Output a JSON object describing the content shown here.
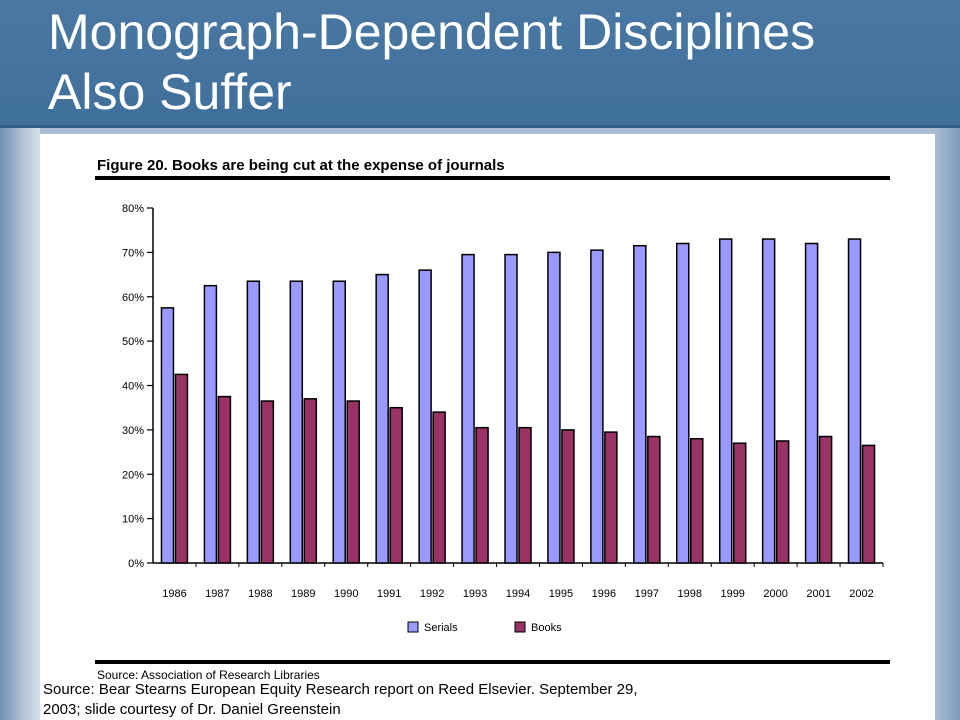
{
  "slide": {
    "title_line1": "Monograph-Dependent Disciplines",
    "title_line2": "Also Suffer",
    "source_line1": "Source: Bear Stearns European Equity Research report on Reed Elsevier. September 29,",
    "source_line2": "2003; slide courtesy of Dr. Daniel Greenstein"
  },
  "colors": {
    "header": "#4a78a3",
    "serials": "#9999ff",
    "books": "#993366"
  },
  "chart_data": {
    "type": "bar",
    "title": "Figure 20. Books are being cut at the expense of journals",
    "source_note": "Source: Association of Research Libraries",
    "categories": [
      "1986",
      "1987",
      "1988",
      "1989",
      "1990",
      "1991",
      "1992",
      "1993",
      "1994",
      "1995",
      "1996",
      "1997",
      "1998",
      "1999",
      "2000",
      "2001",
      "2002"
    ],
    "series": [
      {
        "name": "Serials",
        "color": "#9999ff",
        "values": [
          57.5,
          62.5,
          63.5,
          63.5,
          63.5,
          65,
          66,
          69.5,
          69.5,
          70,
          70.5,
          71.5,
          72,
          73,
          73,
          72,
          73
        ]
      },
      {
        "name": "Books",
        "color": "#993366",
        "values": [
          42.5,
          37.5,
          36.5,
          37,
          36.5,
          35,
          34,
          30.5,
          30.5,
          30,
          29.5,
          28.5,
          28,
          27,
          27.5,
          28.5,
          26.5
        ]
      }
    ],
    "ylim": [
      0,
      80
    ],
    "yticks": [
      "0%",
      "10%",
      "20%",
      "30%",
      "40%",
      "50%",
      "60%",
      "70%",
      "80%"
    ],
    "xlabel": "",
    "ylabel": "",
    "legend_position": "bottom-center",
    "grid": false
  }
}
